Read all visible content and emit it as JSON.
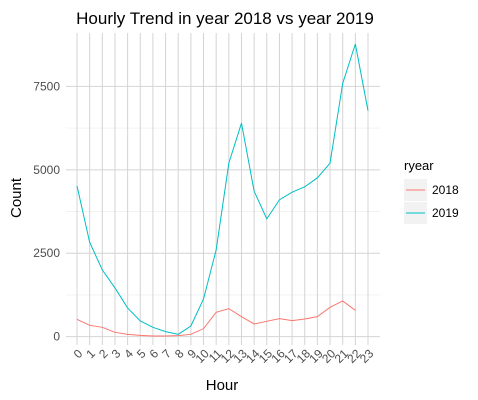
{
  "chart_data": {
    "type": "line",
    "title": "Hourly Trend in year 2018 vs year 2019",
    "xlabel": "Hour",
    "ylabel": "Count",
    "categories": [
      "0",
      "1",
      "2",
      "3",
      "4",
      "5",
      "6",
      "7",
      "8",
      "9",
      "10",
      "11",
      "12",
      "13",
      "14",
      "15",
      "16",
      "17",
      "18",
      "19",
      "20",
      "21",
      "22",
      "23"
    ],
    "yticks": [
      0,
      2500,
      5000,
      7500
    ],
    "ylim": [
      -250,
      9100
    ],
    "grid": true,
    "legend": {
      "title": "ryear",
      "position": "right"
    },
    "series": [
      {
        "name": "2018",
        "color": "#F8766D",
        "values": [
          520,
          340,
          280,
          130,
          70,
          40,
          20,
          20,
          30,
          70,
          240,
          730,
          840,
          600,
          380,
          460,
          540,
          480,
          530,
          600,
          880,
          1070,
          790,
          null
        ]
      },
      {
        "name": "2019",
        "color": "#00BFC4",
        "values": [
          4520,
          2830,
          2000,
          1460,
          860,
          470,
          280,
          150,
          70,
          320,
          1130,
          2600,
          5200,
          6400,
          4360,
          3530,
          4100,
          4330,
          4490,
          4760,
          5200,
          7590,
          8770,
          6770
        ]
      }
    ]
  }
}
